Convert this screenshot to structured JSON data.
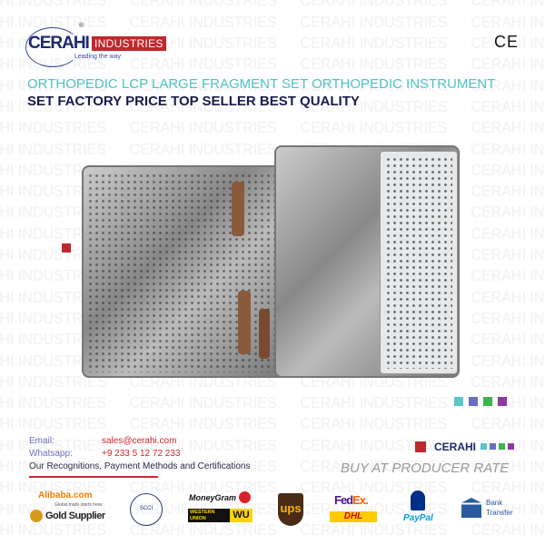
{
  "watermark": "CERAHI INDUSTRIES",
  "brand": {
    "name": "CERAHI",
    "suffix": "INDUSTRIES",
    "tagline": "Leading the way",
    "registered": "®",
    "ce_mark": "CE"
  },
  "title": {
    "line1": "ORTHOPEDIC LCP LARGE FRAGMENT SET ORTHOPEDIC INSTRUMENT",
    "line2": "SET FACTORY PRICE TOP SELLER BEST QUALITY"
  },
  "contact": {
    "email_label": "Email:",
    "email": "sales@cerahi.com",
    "whatsapp_label": "Whatsapp:",
    "whatsapp": "+9 233 5 12 72 233",
    "recognitions": "Our Recognitions, Payment Methods and Certifications"
  },
  "promo": {
    "brand": "CERAHI",
    "slogan": "BUY AT PRODUCER RATE"
  },
  "partners": {
    "alibaba": "Alibaba.com",
    "alibaba_sub": "Global trade starts here.",
    "gold": "Gold Supplier",
    "moneygram": "MoneyGram",
    "wu": "WESTERN UNION",
    "wu_short": "WU",
    "ups": "ups",
    "fedex_a": "Fed",
    "fedex_b": "Ex.",
    "dhl": "DHL",
    "paypal": "PayPal",
    "bank": "Bank",
    "transfer": "Transfer",
    "chamber": "SCCI"
  },
  "colors": {
    "accent_cyan": "#4fc3c9",
    "navy": "#1d1b4c",
    "red": "#c0282e",
    "squares": [
      "#5bc4cc",
      "#6a6ec0",
      "#3db54a",
      "#8e3a9e"
    ]
  }
}
